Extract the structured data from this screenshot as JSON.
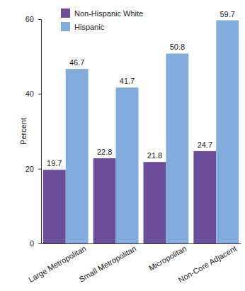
{
  "chart_data": {
    "type": "bar",
    "y_label": "Percent",
    "categories": [
      "Large Metropolitan",
      "Small Metropolitan",
      "Micropolitan",
      "Non-Core Adjacent"
    ],
    "series": [
      {
        "name": "Non-Hispanic White",
        "color": "#6b4c99",
        "values": [
          19.7,
          22.8,
          21.8,
          24.7
        ]
      },
      {
        "name": "Hispanic",
        "color": "#82acdb",
        "values": [
          46.7,
          41.7,
          50.8,
          59.7
        ]
      }
    ],
    "ylim": [
      0,
      60
    ],
    "yticks": [
      0,
      20,
      40,
      60
    ],
    "grid": false,
    "legend": "upper left",
    "data_labels": true
  }
}
